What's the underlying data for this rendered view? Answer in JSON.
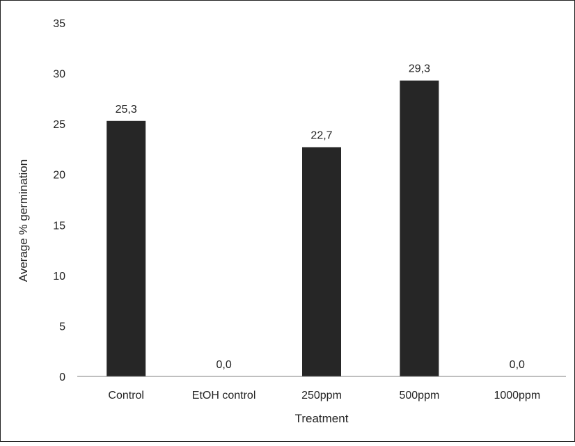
{
  "chart_data": {
    "type": "bar",
    "categories": [
      "Control",
      "EtOH control",
      "250ppm",
      "500ppm",
      "1000ppm"
    ],
    "values": [
      25.3,
      0.0,
      22.7,
      29.3,
      0.0
    ],
    "data_labels": [
      "25,3",
      "0,0",
      "22,7",
      "29,3",
      "0,0"
    ],
    "yticks": [
      "0",
      "5",
      "10",
      "15",
      "20",
      "25",
      "30",
      "35"
    ],
    "xlabel": "Treatment",
    "ylabel": "Average % germination",
    "ylim": [
      0,
      35
    ],
    "grid": false,
    "legend": "none",
    "bar_color": "#262626"
  }
}
